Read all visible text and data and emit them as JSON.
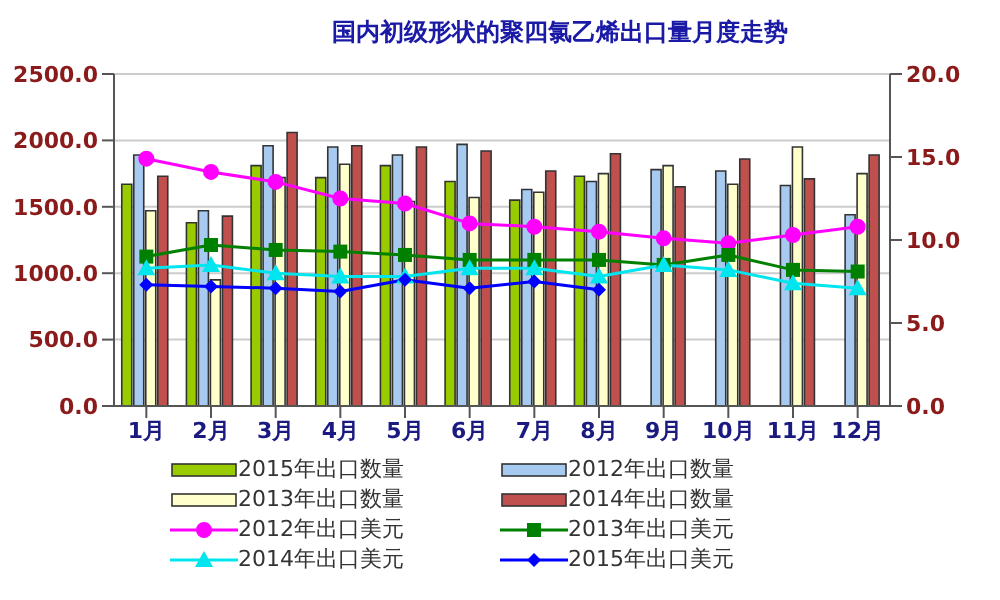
{
  "chart_data": {
    "type": "bar",
    "title": "国内初级形状的聚四氯乙烯出口量月度走势",
    "categories": [
      "1月",
      "2月",
      "3月",
      "4月",
      "5月",
      "6月",
      "7月",
      "8月",
      "9月",
      "10月",
      "11月",
      "12月"
    ],
    "series": [
      {
        "name": "2015年出口数量",
        "color": "#99cc00",
        "values": [
          1670,
          1380,
          1810,
          1720,
          1810,
          1690,
          1550,
          1730,
          null,
          null,
          null,
          null
        ]
      },
      {
        "name": "2012年出口数量",
        "color": "#a6caf0",
        "values": [
          1890,
          1470,
          1960,
          1950,
          1890,
          1970,
          1630,
          1690,
          1780,
          1770,
          1660,
          1440
        ]
      },
      {
        "name": "2013年出口数量",
        "color": "#ffffcc",
        "values": [
          1470,
          950,
          1720,
          1820,
          1540,
          1570,
          1610,
          1750,
          1810,
          1670,
          1950,
          1750
        ]
      },
      {
        "name": "2014年出口数量",
        "color": "#c0504d",
        "values": [
          1730,
          1430,
          2060,
          1960,
          1950,
          1920,
          1770,
          1900,
          1650,
          1860,
          1710,
          1890
        ]
      },
      {
        "name": "2012年出口美元",
        "type": "line",
        "axis": "y2",
        "marker": "circle",
        "color": "#ff00ff",
        "values": [
          14.9,
          14.1,
          13.5,
          12.5,
          12.2,
          11.0,
          10.8,
          10.5,
          10.1,
          9.8,
          10.3,
          10.8
        ]
      },
      {
        "name": "2013年出口美元",
        "type": "line",
        "axis": "y2",
        "marker": "square",
        "color": "#008000",
        "values": [
          9.0,
          9.7,
          9.4,
          9.3,
          9.1,
          8.8,
          8.8,
          8.8,
          8.5,
          9.1,
          8.2,
          8.1
        ]
      },
      {
        "name": "2014年出口美元",
        "type": "line",
        "axis": "y2",
        "marker": "triangle",
        "color": "#00e5ee",
        "values": [
          8.3,
          8.5,
          8.0,
          7.8,
          7.8,
          8.3,
          8.3,
          7.8,
          8.5,
          8.2,
          7.4,
          7.1
        ]
      },
      {
        "name": "2015年出口美元",
        "type": "line",
        "axis": "y2",
        "marker": "diamond",
        "color": "#0000ff",
        "values": [
          7.3,
          7.2,
          7.1,
          6.9,
          7.6,
          7.1,
          7.5,
          7.0,
          null,
          null,
          null,
          null
        ]
      }
    ],
    "ylim": [
      0,
      2500
    ],
    "yticks": [
      {
        "value": 0,
        "label": "0.0"
      },
      {
        "value": 500,
        "label": "500.0"
      },
      {
        "value": 1000,
        "label": "1000.0"
      },
      {
        "value": 1500,
        "label": "1500.0"
      },
      {
        "value": 2000,
        "label": "2000.0"
      },
      {
        "value": 2500,
        "label": "2500.0"
      }
    ],
    "y2lim": [
      0,
      20
    ],
    "y2ticks": [
      {
        "value": 0,
        "label": "0.0"
      },
      {
        "value": 5,
        "label": "5.0"
      },
      {
        "value": 10,
        "label": "10.0"
      },
      {
        "value": 15,
        "label": "15.0"
      },
      {
        "value": 20,
        "label": "20.0"
      }
    ],
    "grid": "y",
    "legend": "bottom"
  }
}
